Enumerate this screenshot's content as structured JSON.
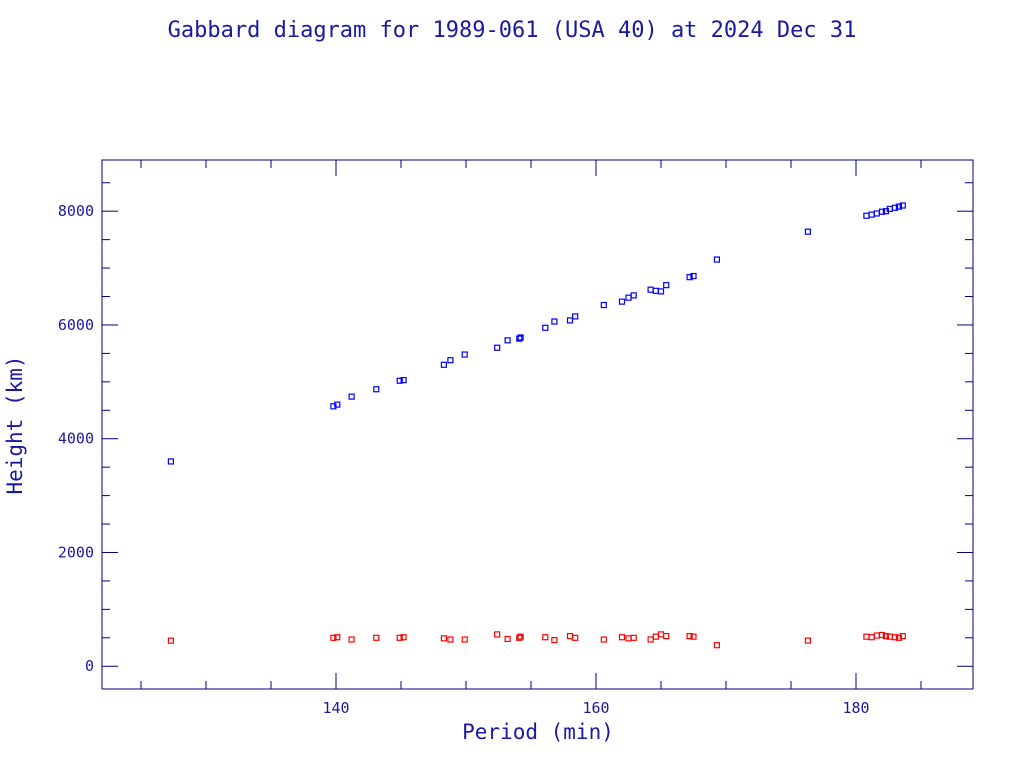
{
  "colors": {
    "frame": "#000080",
    "text": "#1a1aa0",
    "apogee": "#0000ff",
    "perigee": "#ff0000",
    "background": "#ffffff"
  },
  "chart_data": {
    "type": "scatter",
    "title": "Gabbard diagram for 1989-061 (USA 40) at 2024 Dec 31",
    "xlabel": "Period (min)",
    "ylabel": "Height (km)",
    "xlim": [
      122,
      189
    ],
    "ylim": [
      -400,
      8900
    ],
    "x_ticks": [
      140,
      160,
      180
    ],
    "y_ticks": [
      0,
      2000,
      4000,
      6000,
      8000
    ],
    "grid": false,
    "legend": "none",
    "series": [
      {
        "key": "apogee",
        "marker": "square",
        "points": [
          [
            127.3,
            3600
          ],
          [
            139.8,
            4570
          ],
          [
            140.1,
            4600
          ],
          [
            141.2,
            4740
          ],
          [
            143.1,
            4870
          ],
          [
            144.9,
            5020
          ],
          [
            145.2,
            5030
          ],
          [
            148.3,
            5300
          ],
          [
            148.8,
            5380
          ],
          [
            149.9,
            5480
          ],
          [
            152.4,
            5600
          ],
          [
            153.2,
            5730
          ],
          [
            154.1,
            5760
          ],
          [
            154.2,
            5780
          ],
          [
            156.1,
            5950
          ],
          [
            156.8,
            6060
          ],
          [
            158.0,
            6080
          ],
          [
            158.4,
            6150
          ],
          [
            160.6,
            6350
          ],
          [
            162.0,
            6410
          ],
          [
            162.5,
            6480
          ],
          [
            162.9,
            6520
          ],
          [
            164.2,
            6620
          ],
          [
            164.6,
            6600
          ],
          [
            165.0,
            6590
          ],
          [
            165.4,
            6700
          ],
          [
            167.2,
            6840
          ],
          [
            167.5,
            6860
          ],
          [
            169.3,
            7150
          ],
          [
            176.3,
            7640
          ],
          [
            180.8,
            7920
          ],
          [
            181.2,
            7940
          ],
          [
            181.6,
            7960
          ],
          [
            182.0,
            7990
          ],
          [
            182.3,
            8000
          ],
          [
            182.6,
            8040
          ],
          [
            183.0,
            8060
          ],
          [
            183.3,
            8080
          ],
          [
            183.6,
            8100
          ]
        ]
      },
      {
        "key": "perigee",
        "marker": "square",
        "points": [
          [
            127.3,
            450
          ],
          [
            139.8,
            500
          ],
          [
            140.1,
            510
          ],
          [
            141.2,
            470
          ],
          [
            143.1,
            500
          ],
          [
            144.9,
            500
          ],
          [
            145.2,
            510
          ],
          [
            148.3,
            490
          ],
          [
            148.8,
            470
          ],
          [
            149.9,
            470
          ],
          [
            152.4,
            560
          ],
          [
            153.2,
            480
          ],
          [
            154.1,
            500
          ],
          [
            154.2,
            520
          ],
          [
            156.1,
            510
          ],
          [
            156.8,
            460
          ],
          [
            158.0,
            530
          ],
          [
            158.4,
            500
          ],
          [
            160.6,
            470
          ],
          [
            162.0,
            510
          ],
          [
            162.5,
            490
          ],
          [
            162.9,
            500
          ],
          [
            164.2,
            470
          ],
          [
            164.6,
            520
          ],
          [
            165.0,
            560
          ],
          [
            165.4,
            530
          ],
          [
            167.2,
            530
          ],
          [
            167.5,
            520
          ],
          [
            169.3,
            370
          ],
          [
            176.3,
            450
          ],
          [
            180.8,
            520
          ],
          [
            181.2,
            510
          ],
          [
            181.6,
            540
          ],
          [
            182.0,
            550
          ],
          [
            182.3,
            530
          ],
          [
            182.6,
            520
          ],
          [
            183.0,
            510
          ],
          [
            183.3,
            500
          ],
          [
            183.6,
            530
          ]
        ]
      }
    ]
  }
}
